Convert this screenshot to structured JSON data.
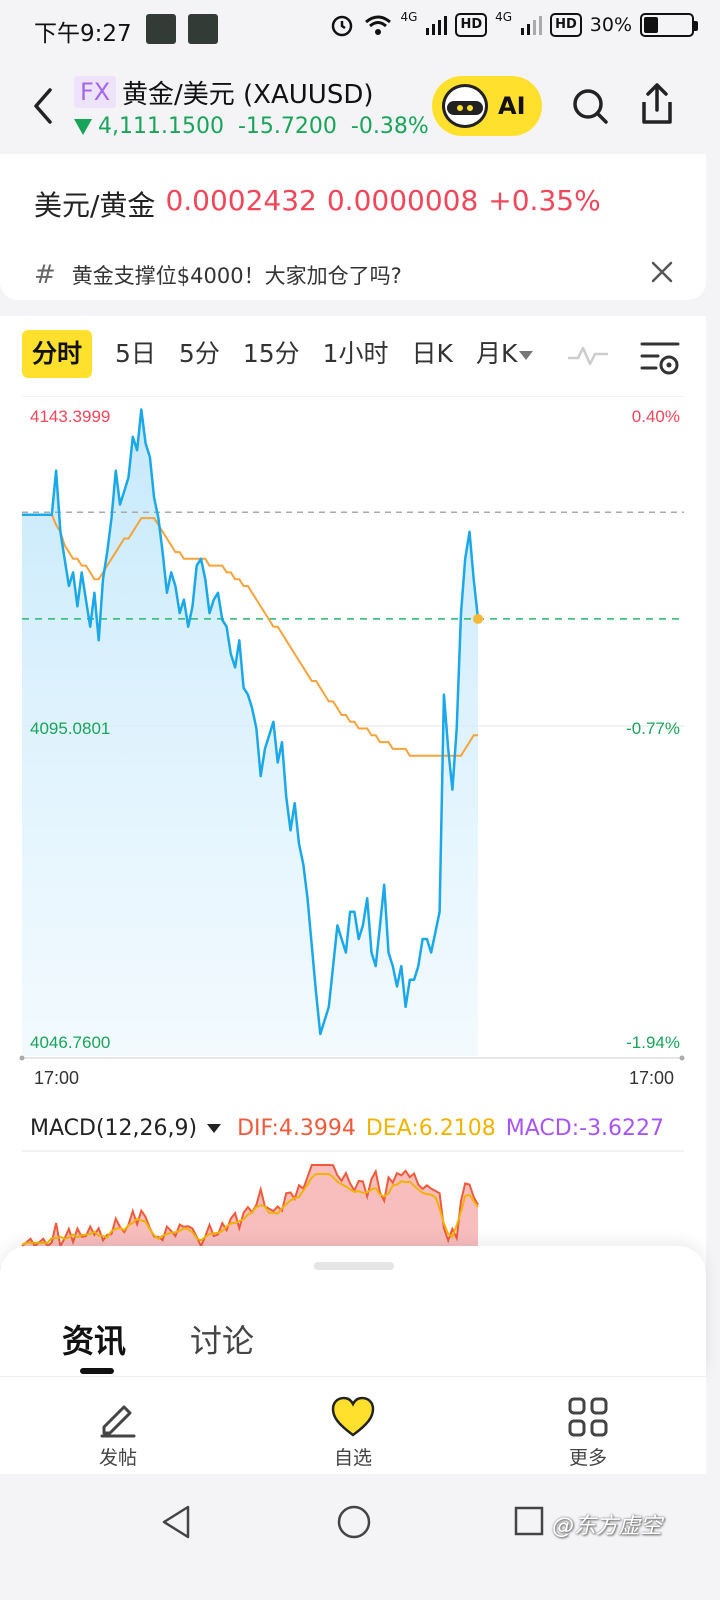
{
  "status_bar": {
    "time": "下午9:27",
    "network1": "4G",
    "network2": "4G",
    "hd": "HD",
    "battery": "30%",
    "battery_level": 0.3
  },
  "header": {
    "badge": "FX",
    "title": "黄金/美元 (XAUUSD)",
    "price": "4,111.1500",
    "change": "-15.7200",
    "change_pct": "-0.38%",
    "ai_label": "AI"
  },
  "info": {
    "inverse_label": "美元/黄金",
    "inverse_price": "0.0002432",
    "inverse_change": "0.0000008",
    "inverse_pct": "+0.35%",
    "news_text": "黄金支撑位$4000！大家加仓了吗?"
  },
  "tabs": [
    {
      "label": "分时",
      "active": true
    },
    {
      "label": "5日"
    },
    {
      "label": "5分"
    },
    {
      "label": "15分"
    },
    {
      "label": "1小时"
    },
    {
      "label": "日K"
    },
    {
      "label": "月K"
    }
  ],
  "chart_data": {
    "type": "line",
    "y_top_label": "4143.3999",
    "y_mid_label": "4095.0801",
    "y_bottom_label": "4046.7600",
    "pct_top_label": "0.40%",
    "pct_mid_label": "-0.77%",
    "pct_bottom_label": "-1.94%",
    "x_start_label": "17:00",
    "x_end_label": "17:00",
    "ylim": [
      4046.76,
      4143.3999
    ],
    "prev_close": 4126.87,
    "current": 4111.15,
    "series": [
      {
        "name": "price",
        "color": "#1aa8e8",
        "values": [
          4126.5,
          4126.5,
          4126.5,
          4126.5,
          4126.5,
          4126.5,
          4126.5,
          4126.5,
          4133,
          4124,
          4120,
          4116,
          4118,
          4113,
          4118,
          4114,
          4110,
          4115,
          4108,
          4117,
          4121,
          4126,
          4133,
          4128,
          4130,
          4132,
          4138,
          4136,
          4142,
          4137,
          4135,
          4129,
          4126,
          4121,
          4115,
          4118,
          4116,
          4112,
          4114,
          4110,
          4113,
          4119,
          4120,
          4117,
          4112,
          4114,
          4115,
          4111,
          4110,
          4106,
          4104,
          4108,
          4101,
          4100,
          4098,
          4095,
          4088,
          4092,
          4094,
          4096,
          4090,
          4093,
          4085,
          4080,
          4084,
          4078,
          4075,
          4070,
          4063,
          4056,
          4050,
          4052,
          4054,
          4060,
          4066,
          4064,
          4062,
          4068,
          4068,
          4064,
          4066,
          4070,
          4062,
          4060,
          4066,
          4072,
          4062,
          4060,
          4057,
          4060,
          4054,
          4058,
          4058,
          4060,
          4064,
          4064,
          4062,
          4065,
          4068,
          4100,
          4092,
          4086,
          4095,
          4112,
          4120,
          4124,
          4117,
          4111.15
        ]
      },
      {
        "name": "average",
        "color": "#f6a33b",
        "values": [
          4126.5,
          4126.5,
          4126.5,
          4126.5,
          4126.5,
          4126.5,
          4126.5,
          4126.5,
          4125,
          4124,
          4122,
          4121,
          4120,
          4120,
          4119,
          4119,
          4118,
          4117,
          4117,
          4118,
          4119,
          4120,
          4121,
          4122,
          4123,
          4123,
          4124,
          4125,
          4126,
          4126,
          4126,
          4126,
          4125,
          4124,
          4123,
          4122,
          4121,
          4121,
          4120,
          4120,
          4120,
          4120,
          4120,
          4120,
          4119,
          4119,
          4119,
          4119,
          4118,
          4118,
          4117,
          4117,
          4116,
          4116,
          4115,
          4114,
          4113,
          4112,
          4111,
          4110,
          4110,
          4109,
          4108,
          4107,
          4106,
          4105,
          4104,
          4103,
          4102,
          4102,
          4101,
          4100,
          4099,
          4099,
          4098,
          4097,
          4097,
          4096,
          4096,
          4095,
          4095,
          4095,
          4094,
          4094,
          4093,
          4093,
          4093,
          4092,
          4092,
          4092,
          4092,
          4091,
          4091,
          4091,
          4091,
          4091,
          4091,
          4091,
          4091,
          4091,
          4091,
          4091,
          4091,
          4091,
          4092,
          4093,
          4094,
          4094
        ]
      }
    ],
    "macd": {
      "label": "MACD(12,26,9)",
      "dif": "DIF:4.3994",
      "dea": "DEA:6.2108",
      "macd": "MACD:-3.6227"
    }
  },
  "sheet": {
    "tab1": "资讯",
    "tab2": "讨论"
  },
  "bottom_bar": {
    "post": "发帖",
    "favorite": "自选",
    "more": "更多"
  },
  "watermark": "@东方虚空",
  "colors": {
    "accent": "#ffe12d",
    "down": "#19a45a",
    "up": "#f0475a"
  }
}
